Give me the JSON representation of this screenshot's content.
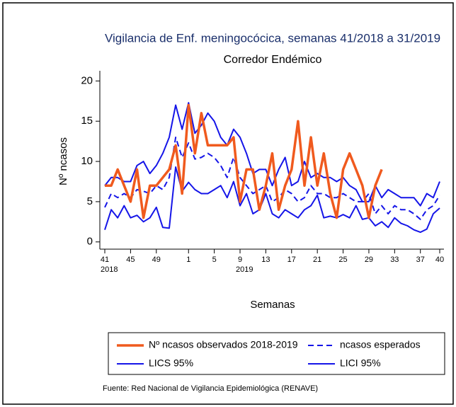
{
  "chart_data": {
    "type": "line",
    "title": "Vigilancia de Enf. meningocócica, semanas 41/2018 a 31/2019",
    "subtitle": "Corredor Endémico",
    "x_label": "Semanas",
    "y_label": "Nº ncasos",
    "source": "Fuente: Red Nacional de Vigilancia Epidemiológica (RENAVE)",
    "categories": [
      "41",
      null,
      null,
      null,
      "45",
      null,
      null,
      null,
      "49",
      null,
      null,
      null,
      null,
      "1",
      null,
      null,
      null,
      "5",
      null,
      null,
      null,
      "9",
      null,
      null,
      null,
      "13",
      null,
      null,
      null,
      "17",
      null,
      null,
      null,
      "21",
      null,
      null,
      null,
      "25",
      null,
      null,
      null,
      "29",
      null,
      null,
      null,
      "33",
      null,
      null,
      null,
      "37",
      null,
      null,
      "40"
    ],
    "category_sublabels": [
      "2018",
      null,
      null,
      null,
      null,
      null,
      null,
      null,
      null,
      null,
      null,
      null,
      null,
      null,
      null,
      null,
      null,
      null,
      null,
      null,
      null,
      "2019",
      null,
      null,
      null,
      null,
      null,
      null,
      null,
      null,
      null,
      null,
      null,
      null,
      null,
      null,
      null,
      null,
      null,
      null,
      null,
      null,
      null,
      null,
      null,
      null,
      null,
      null,
      null,
      null,
      null,
      null,
      null
    ],
    "ylim": [
      -0.9,
      21
    ],
    "yticks": [
      0,
      5,
      10,
      15,
      20
    ],
    "grid": false,
    "legend": "bottom",
    "series": [
      {
        "name": "Nº ncasos observados 2018-2019",
        "color": "#f05a1e",
        "style": "solid",
        "values": [
          7,
          7,
          9,
          7,
          5,
          9,
          3,
          7,
          7,
          8,
          9,
          12,
          6,
          17,
          11,
          16,
          12,
          12,
          12,
          12,
          13,
          5,
          9,
          9,
          4,
          7,
          11,
          4,
          7,
          9,
          15,
          7,
          13,
          7,
          11,
          6,
          3,
          9,
          11,
          9,
          7,
          3,
          7,
          9,
          null,
          null,
          null,
          null,
          null,
          null,
          null,
          null,
          null
        ]
      },
      {
        "name": "ncasos esperados",
        "color": "#1515e8",
        "style": "dashed",
        "values": [
          4.3,
          6,
          5.5,
          6,
          5.5,
          6.5,
          6.3,
          6,
          7,
          6.5,
          8,
          13,
          10.5,
          12.3,
          10.3,
          10.5,
          11,
          10.5,
          9.5,
          8,
          10.5,
          8,
          7,
          6,
          6.5,
          7,
          5,
          5.5,
          6.5,
          6,
          5,
          5.5,
          7,
          6,
          6,
          5.5,
          5.5,
          6,
          5.5,
          5,
          5,
          6,
          3.5,
          4.5,
          3.5,
          4.5,
          4,
          4,
          3.5,
          2.8,
          4,
          4.5,
          5.8
        ]
      },
      {
        "name": "LICS 95%",
        "color": "#1515e8",
        "style": "solid",
        "values": [
          7,
          8,
          8,
          7.5,
          7.5,
          9.5,
          10,
          8.5,
          9.5,
          11,
          13,
          17,
          14,
          17.3,
          13.5,
          14.5,
          16,
          15,
          13,
          12,
          14,
          13,
          11,
          8.5,
          9,
          9,
          7,
          9,
          10.5,
          7,
          7.5,
          10,
          8,
          8.5,
          8,
          8,
          7.5,
          8,
          7,
          6.5,
          5,
          5,
          7,
          5.5,
          6.5,
          6,
          5.5,
          5.5,
          5.5,
          4.5,
          6,
          5.5,
          7.5
        ]
      },
      {
        "name": "LICI 95%",
        "color": "#1515e8",
        "style": "solid",
        "values": [
          1.5,
          4,
          3,
          4.5,
          3,
          3.3,
          2.5,
          3,
          4.3,
          1.8,
          1.7,
          9.3,
          6.3,
          7.4,
          6.5,
          6,
          6,
          6.5,
          7,
          5.5,
          7.5,
          4.5,
          6,
          3.5,
          4,
          6,
          3.5,
          3,
          4,
          3.5,
          3,
          4,
          4.5,
          5.8,
          3,
          3.2,
          3,
          3.4,
          3,
          4.5,
          2.8,
          3,
          2,
          2.5,
          1.8,
          3,
          2.3,
          2,
          1.5,
          1.2,
          1.6,
          3.5,
          4.2
        ]
      }
    ]
  }
}
